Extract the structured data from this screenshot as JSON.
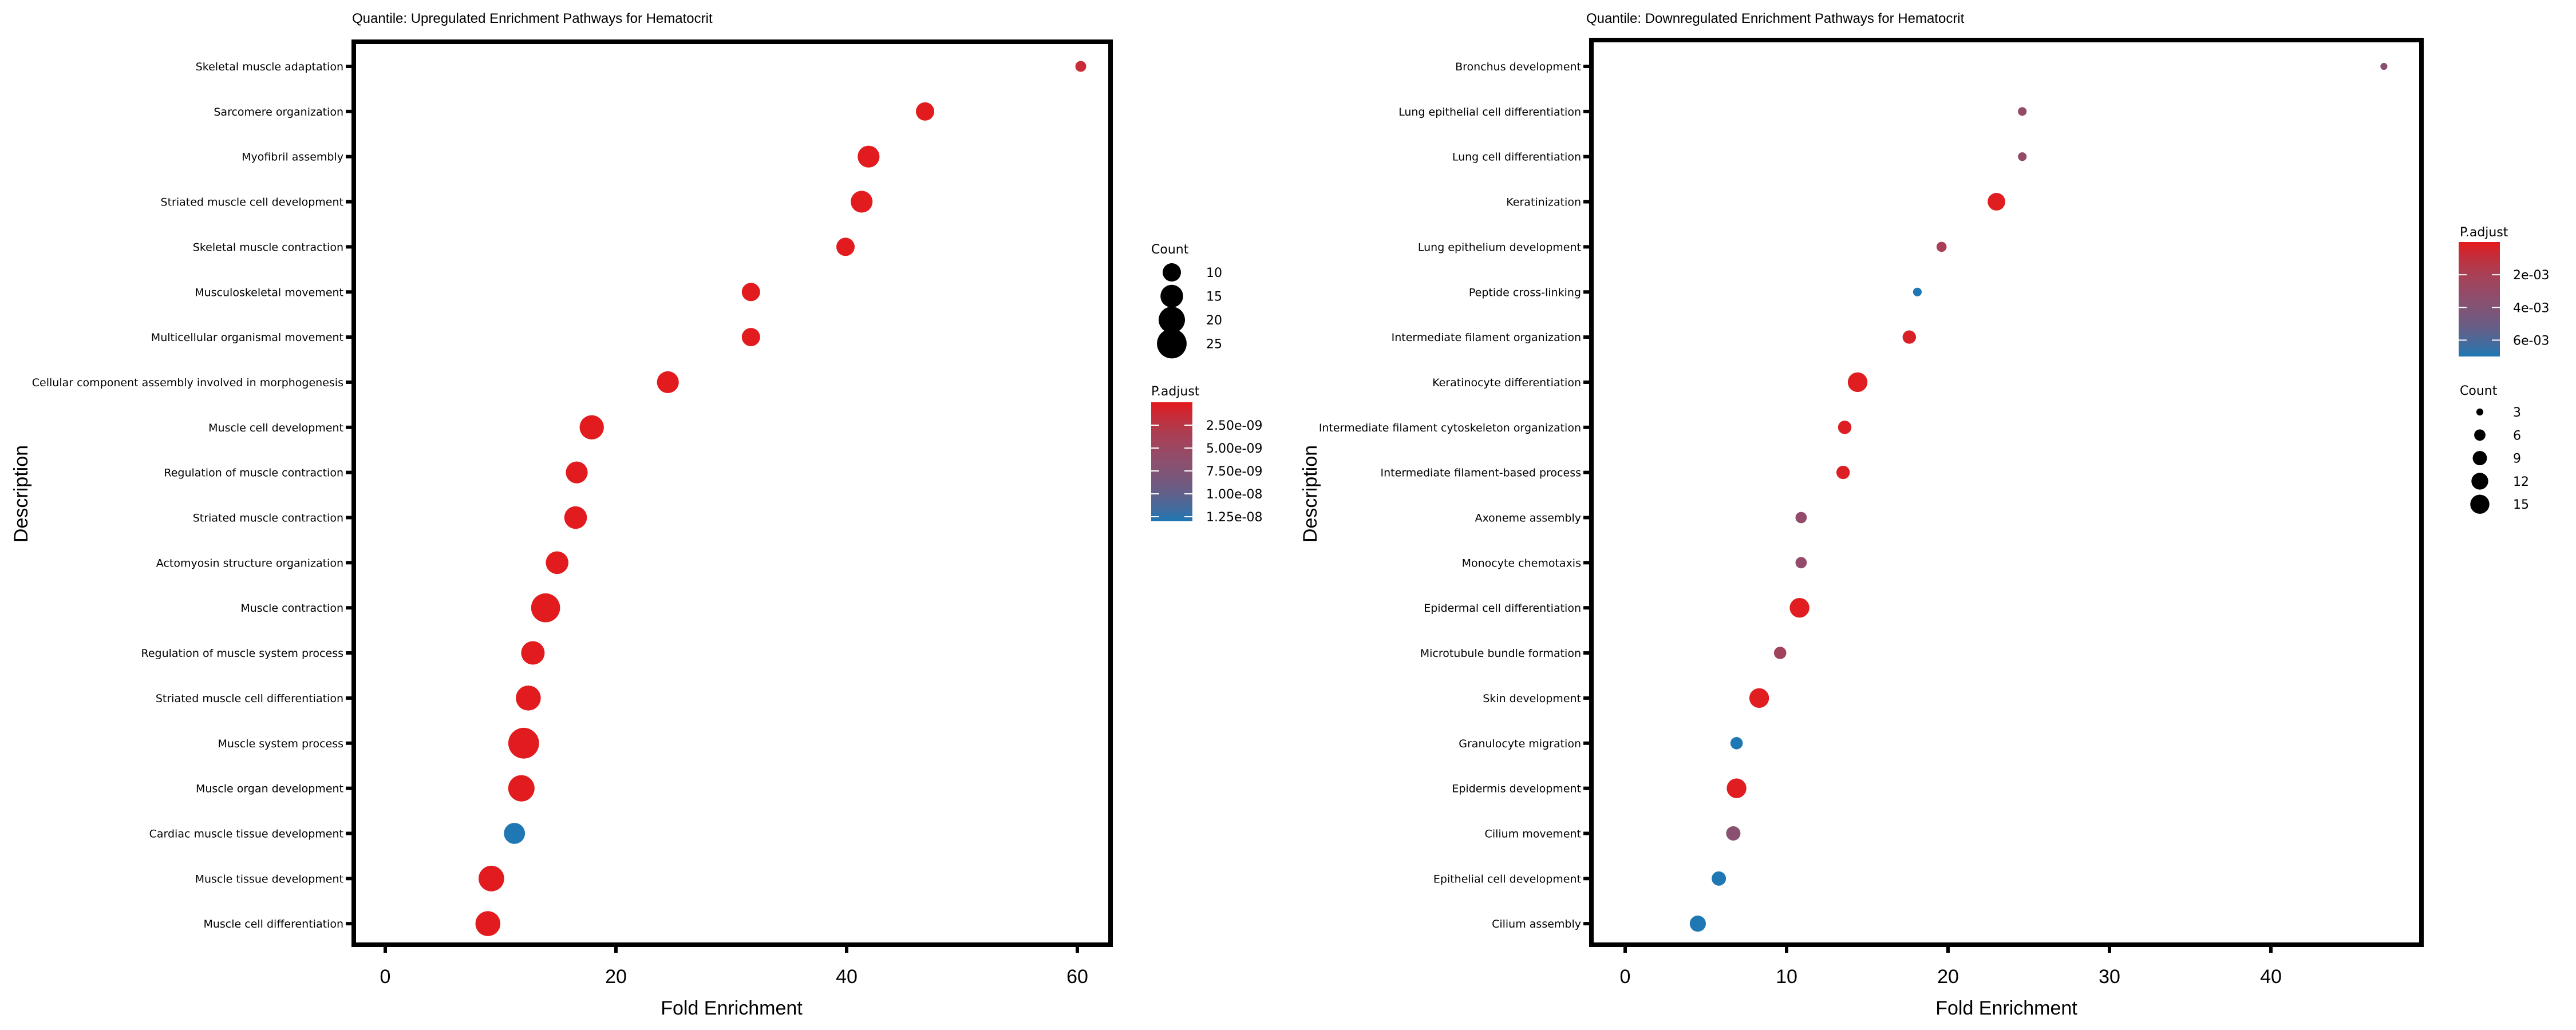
{
  "chart_data": [
    {
      "type": "scatter",
      "title": "Quantile: Upregulated Enrichment Pathways for Hematocrit",
      "xlabel": "Fold Enrichment",
      "ylabel": "Description",
      "xlim": [
        -3,
        63
      ],
      "xticks": [
        0,
        20,
        40,
        60
      ],
      "grid": false,
      "categories": [
        "Skeletal muscle adaptation",
        "Sarcomere organization",
        "Myofibril assembly",
        "Striated muscle cell development",
        "Skeletal muscle contraction",
        "Musculoskeletal movement",
        "Multicellular organismal movement",
        "Cellular component assembly involved in morphogenesis",
        "Muscle cell development",
        "Regulation of muscle contraction",
        "Striated muscle contraction",
        "Actomyosin structure organization",
        "Muscle contraction",
        "Regulation of muscle system process",
        "Striated muscle cell differentiation",
        "Muscle system process",
        "Muscle organ development",
        "Cardiac muscle tissue development",
        "Muscle tissue development",
        "Muscle cell differentiation"
      ],
      "fold_enrichment": [
        60.3,
        46.8,
        41.9,
        41.3,
        39.9,
        31.7,
        31.7,
        24.5,
        17.9,
        16.6,
        16.5,
        14.9,
        13.9,
        12.8,
        12.4,
        12.0,
        11.8,
        11.2,
        9.2,
        8.9
      ],
      "count": [
        4,
        10,
        14,
        14,
        10,
        10,
        10,
        14,
        17,
        14,
        15,
        15,
        24,
        16,
        18,
        27,
        20,
        13,
        19,
        18
      ],
      "p_adjust": [
        1.5e-09,
        1e-10,
        1e-10,
        1e-10,
        1e-10,
        1e-10,
        1e-10,
        1e-10,
        1e-10,
        1e-10,
        1e-10,
        1e-10,
        1e-10,
        1e-10,
        1e-10,
        1e-10,
        1e-10,
        1.3e-08,
        1e-10,
        1e-10
      ],
      "size_legend": {
        "title": "Count",
        "breaks": [
          10,
          15,
          20,
          25
        ],
        "labels": [
          "10",
          "15",
          "20",
          "25"
        ],
        "placement": "right-top"
      },
      "color_legend": {
        "title": "P.adjust",
        "range": [
          0,
          1.3e-08
        ],
        "breaks": [
          2.5e-09,
          5e-09,
          7.5e-09,
          1e-08,
          1.25e-08
        ],
        "labels": [
          "2.50e-09",
          "5.00e-09",
          "7.50e-09",
          "1.00e-08",
          "1.25e-08"
        ],
        "low_color": "#E41A1C",
        "high_color": "#1F78B4",
        "placement": "right-bottom"
      }
    },
    {
      "type": "scatter",
      "title": "Quantile: Downregulated Enrichment Pathways for Hematocrit",
      "xlabel": "Fold Enrichment",
      "ylabel": "Description",
      "xlim": [
        -2.2,
        49.3
      ],
      "xticks": [
        0,
        10,
        20,
        30,
        40
      ],
      "grid": false,
      "categories": [
        "Bronchus development",
        "Lung epithelial cell differentiation",
        "Lung cell differentiation",
        "Keratinization",
        "Lung epithelium development",
        "Peptide cross-linking",
        "Intermediate filament organization",
        "Keratinocyte differentiation",
        "Intermediate filament cytoskeleton organization",
        "Intermediate filament-based process",
        "Axoneme assembly",
        "Monocyte chemotaxis",
        "Epidermal cell differentiation",
        "Microtubule bundle formation",
        "Skin development",
        "Granulocyte migration",
        "Epidermis development",
        "Cilium movement",
        "Epithelial cell development",
        "Cilium assembly"
      ],
      "fold_enrichment": [
        47.0,
        24.6,
        24.6,
        23.0,
        19.6,
        18.1,
        17.6,
        14.4,
        13.6,
        13.5,
        10.9,
        10.9,
        10.8,
        9.6,
        8.3,
        6.9,
        6.9,
        6.7,
        5.8,
        4.5
      ],
      "count": [
        3,
        4,
        4,
        13,
        5,
        4,
        8,
        16,
        8,
        8,
        6,
        6,
        16,
        7,
        16,
        7,
        16,
        9,
        9,
        11
      ],
      "p_adjust": [
        0.0036,
        0.0031,
        0.0031,
        0.0001,
        0.002,
        0.007,
        0.0003,
        0.0001,
        0.0002,
        0.0002,
        0.0032,
        0.0032,
        0.0001,
        0.0024,
        0.0001,
        0.007,
        0.0001,
        0.0036,
        0.007,
        0.007
      ],
      "size_legend": {
        "title": "Count",
        "breaks": [
          3,
          6,
          9,
          12,
          15
        ],
        "labels": [
          "3",
          "6",
          "9",
          "12",
          "15"
        ],
        "placement": "right-bottom"
      },
      "color_legend": {
        "title": "P.adjust",
        "range": [
          0,
          0.007
        ],
        "breaks": [
          0.002,
          0.004,
          0.006
        ],
        "labels": [
          "2e-03",
          "4e-03",
          "6e-03"
        ],
        "low_color": "#E41A1C",
        "high_color": "#1F78B4",
        "placement": "right-top"
      }
    }
  ]
}
